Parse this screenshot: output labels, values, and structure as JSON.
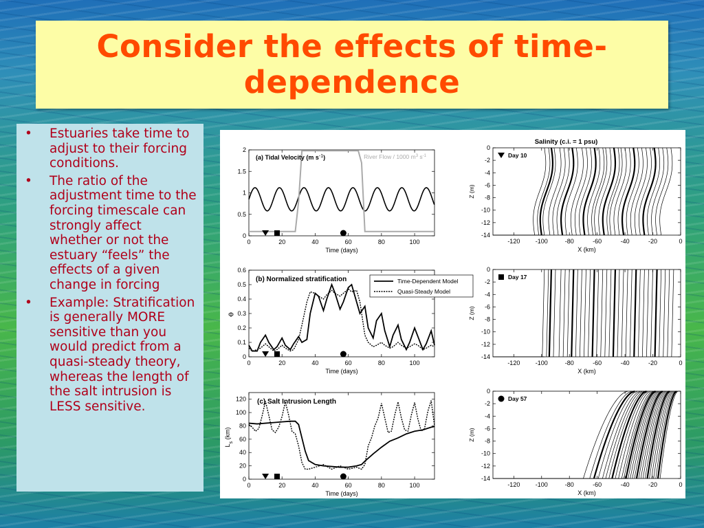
{
  "slide": {
    "title_line1": "Consider the effects of time-",
    "title_line2": "dependence",
    "bullets": [
      "Estuaries take time to adjust to their forcing conditions.",
      "The ratio of the adjustment time to the forcing timescale can strongly affect whether or not the estuary “feels” the effects of a given change in forcing",
      "Example: Stratification is generally MORE sensitive than you would predict from a quasi-steady theory, whereas the length of the salt intrusion is LESS sensitive."
    ],
    "bullet_glyph": "•",
    "colors": {
      "title": "#ff4a00",
      "bullet_text": "#b0001a",
      "title_bg": "#fdfda6",
      "bullet_bg": "#bfe2ea"
    }
  },
  "chart_data": [
    {
      "type": "line",
      "panel_label": "(a) Tidal Velocity (m s",
      "panel_label_sup": "-1",
      "panel_label_end": ")",
      "secondary_label": "River Flow / 1000 m",
      "secondary_sup1": "3",
      "secondary_mid": " s",
      "secondary_sup2": "-1",
      "xlabel": "Time (days)",
      "ylabel": "",
      "xlim": [
        0,
        112
      ],
      "ylim": [
        0,
        2
      ],
      "xticks": [
        "0",
        "20",
        "40",
        "60",
        "80",
        "100"
      ],
      "yticks": [
        "0",
        "0.5",
        "1",
        "1.5",
        "2"
      ],
      "series": [
        {
          "mean": 0.85,
          "amplitude": 0.27,
          "period_days": 14.77,
          "color": "#000000"
        },
        {
          "x": [
            0,
            28,
            30,
            32,
            66,
            68,
            70,
            112
          ],
          "y": [
            0.1,
            0.1,
            0.8,
            1.98,
            1.98,
            1.7,
            0.1,
            0.1
          ],
          "color": "#aaaaaa"
        }
      ],
      "markers": [
        {
          "shape": "triangle",
          "x": 10
        },
        {
          "shape": "square",
          "x": 17
        },
        {
          "shape": "circle",
          "x": 57
        }
      ]
    },
    {
      "type": "line",
      "panel_label": "(b) Normalized stratification",
      "xlabel": "Time (days)",
      "ylabel": "Φ",
      "xlim": [
        0,
        112
      ],
      "ylim": [
        0,
        0.6
      ],
      "xticks": [
        "0",
        "20",
        "40",
        "60",
        "80",
        "100"
      ],
      "yticks": [
        "0",
        "0.1",
        "0.2",
        "0.3",
        "0.4",
        "0.5",
        "0.6"
      ],
      "legend": [
        "Time-Dependent Model",
        "Quasi-Steady Model"
      ],
      "legend_position": "top-right",
      "series": [
        {
          "name": "Time-Dependent Model",
          "x": [
            0,
            2,
            5,
            7,
            10,
            12,
            15,
            17,
            20,
            22,
            25,
            27,
            30,
            32,
            35,
            37,
            40,
            42,
            45,
            47,
            50,
            52,
            55,
            57,
            60,
            62,
            65,
            67,
            70,
            72,
            75,
            77,
            80,
            82,
            85,
            87,
            90,
            92,
            95,
            97,
            100,
            102,
            105,
            107,
            110,
            112
          ],
          "y": [
            0.08,
            0.04,
            0.04,
            0.1,
            0.15,
            0.1,
            0.05,
            0.07,
            0.13,
            0.08,
            0.05,
            0.09,
            0.14,
            0.1,
            0.12,
            0.3,
            0.44,
            0.42,
            0.32,
            0.4,
            0.5,
            0.44,
            0.33,
            0.38,
            0.48,
            0.5,
            0.38,
            0.3,
            0.35,
            0.2,
            0.13,
            0.25,
            0.3,
            0.18,
            0.07,
            0.15,
            0.22,
            0.12,
            0.05,
            0.1,
            0.2,
            0.14,
            0.05,
            0.09,
            0.18,
            0.08
          ]
        },
        {
          "name": "Quasi-Steady Model",
          "x": [
            0,
            2,
            5,
            7,
            10,
            12,
            15,
            17,
            20,
            22,
            25,
            27,
            30,
            32,
            35,
            37,
            40,
            42,
            45,
            47,
            50,
            52,
            55,
            57,
            60,
            62,
            65,
            67,
            70,
            72,
            75,
            77,
            80,
            82,
            85,
            87,
            90,
            92,
            95,
            97,
            100,
            102,
            105,
            107,
            110,
            112
          ],
          "y": [
            0.06,
            0.04,
            0.05,
            0.06,
            0.09,
            0.07,
            0.04,
            0.05,
            0.08,
            0.06,
            0.04,
            0.05,
            0.12,
            0.22,
            0.38,
            0.45,
            0.44,
            0.42,
            0.4,
            0.43,
            0.46,
            0.44,
            0.42,
            0.44,
            0.47,
            0.45,
            0.46,
            0.38,
            0.15,
            0.1,
            0.07,
            0.08,
            0.1,
            0.08,
            0.06,
            0.07,
            0.1,
            0.08,
            0.06,
            0.07,
            0.09,
            0.08,
            0.05,
            0.06,
            0.08,
            0.07
          ]
        }
      ],
      "markers": [
        {
          "shape": "triangle",
          "x": 10
        },
        {
          "shape": "square",
          "x": 17
        },
        {
          "shape": "circle",
          "x": 57
        }
      ]
    },
    {
      "type": "line",
      "panel_label": "(c) Salt Intrusion Length",
      "xlabel": "Time (days)",
      "ylabel": "L",
      "ylabel_sub": "s",
      "ylabel_unit": " (km)",
      "xlim": [
        0,
        112
      ],
      "ylim": [
        0,
        130
      ],
      "xticks": [
        "0",
        "20",
        "40",
        "60",
        "80",
        "100"
      ],
      "yticks": [
        "0",
        "20",
        "40",
        "60",
        "80",
        "100",
        "120"
      ],
      "series": [
        {
          "name": "Time-Dependent Model",
          "x": [
            0,
            5,
            10,
            15,
            20,
            25,
            28,
            30,
            32,
            34,
            36,
            40,
            45,
            50,
            55,
            60,
            65,
            68,
            70,
            75,
            80,
            85,
            90,
            95,
            100,
            105,
            110,
            112
          ],
          "y": [
            84,
            83,
            84,
            85,
            86,
            87,
            87,
            82,
            62,
            42,
            28,
            22,
            20,
            19,
            18,
            18,
            20,
            22,
            27,
            38,
            48,
            57,
            62,
            68,
            72,
            74,
            78,
            79
          ]
        },
        {
          "name": "Quasi-Steady Model",
          "x": [
            0,
            2,
            4,
            6,
            8,
            10,
            12,
            14,
            16,
            18,
            20,
            22,
            24,
            26,
            28,
            30,
            32,
            34,
            36,
            40,
            45,
            50,
            55,
            60,
            65,
            68,
            70,
            72,
            74,
            76,
            78,
            80,
            82,
            84,
            86,
            88,
            90,
            92,
            94,
            96,
            98,
            100,
            102,
            104,
            106,
            108,
            110,
            112
          ],
          "y": [
            82,
            78,
            72,
            76,
            95,
            117,
            96,
            74,
            70,
            78,
            94,
            116,
            96,
            72,
            68,
            50,
            25,
            15,
            15,
            18,
            22,
            15,
            20,
            15,
            18,
            15,
            22,
            50,
            62,
            80,
            92,
            114,
            92,
            70,
            72,
            96,
            116,
            92,
            74,
            72,
            96,
            115,
            90,
            72,
            76,
            102,
            118,
            80
          ]
        }
      ],
      "markers": [
        {
          "shape": "triangle",
          "x": 10
        },
        {
          "shape": "square",
          "x": 17
        },
        {
          "shape": "circle",
          "x": 57
        }
      ]
    },
    {
      "type": "line",
      "title": "Salinity (c.i. = 1 psu)",
      "panel_label": "Day 10",
      "marker": "triangle",
      "xlabel": "X (km)",
      "ylabel": "Z (m)",
      "xlim": [
        -135,
        0
      ],
      "ylim": [
        -14,
        0
      ],
      "xticks": [
        "-120",
        "-100",
        "-80",
        "-60",
        "-40",
        "-20",
        "0"
      ],
      "yticks": [
        "0",
        "-2",
        "-4",
        "-6",
        "-8",
        "-10",
        "-12",
        "-14"
      ],
      "isohaline_x0": [
        -98,
        -95,
        -93,
        -91,
        -87,
        -84,
        -81,
        -78,
        -75,
        -71,
        -68,
        -65,
        -62,
        -59,
        -56,
        -54,
        -51,
        -48,
        -45,
        -43,
        -40,
        -37,
        -34,
        -31,
        -28,
        -25,
        -22,
        -19,
        -16,
        -13,
        -10,
        -7
      ],
      "tilt_km": 7,
      "wiggle_km": 2.5,
      "bold_every": 5
    },
    {
      "type": "line",
      "panel_label": "Day 17",
      "marker": "square",
      "xlabel": "X (km)",
      "ylabel": "Z (m)",
      "xlim": [
        -135,
        0
      ],
      "ylim": [
        -14,
        0
      ],
      "xticks": [
        "-120",
        "-100",
        "-80",
        "-60",
        "-40",
        "-20",
        "0"
      ],
      "yticks": [
        "0",
        "-2",
        "-4",
        "-6",
        "-8",
        "-10",
        "-12",
        "-14"
      ],
      "isohaline_x0": [
        -98,
        -95,
        -93,
        -90,
        -86,
        -83,
        -80,
        -77,
        -74,
        -71,
        -68,
        -65,
        -62,
        -59,
        -56,
        -53,
        -50,
        -47,
        -44,
        -41,
        -38,
        -35,
        -32,
        -29,
        -26,
        -23,
        -20,
        -17,
        -14,
        -11,
        -8,
        -5
      ],
      "tilt_km": 1.5,
      "wiggle_km": 0,
      "bold_every": 5
    },
    {
      "type": "line",
      "panel_label": "Day 57",
      "marker": "circle",
      "xlabel": "X (km)",
      "ylabel": "Z (m)",
      "xlim": [
        -135,
        0
      ],
      "ylim": [
        -14,
        0
      ],
      "xticks": [
        "-120",
        "-100",
        "-80",
        "-60",
        "-40",
        "-20",
        "0"
      ],
      "yticks": [
        "0",
        "-2",
        "-4",
        "-6",
        "-8",
        "-10",
        "-12",
        "-14"
      ],
      "isohaline_x0": [
        -38,
        -35,
        -33,
        -31,
        -29,
        -27.5,
        -26,
        -24.5,
        -23,
        -21.5,
        -20,
        -19,
        -18,
        -17,
        -16,
        -15,
        -14,
        -13,
        -12,
        -11,
        -10,
        -9,
        -8,
        -7,
        -6,
        -5,
        -4,
        -3,
        -2
      ],
      "tilt_km": 32,
      "bold_every": 5
    }
  ]
}
